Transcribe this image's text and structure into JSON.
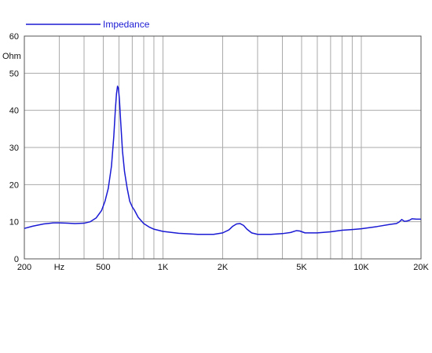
{
  "chart_data": {
    "type": "line",
    "title": "",
    "xlabel": "",
    "ylabel": "Ohm",
    "x_scale": "log",
    "xlim": [
      200,
      20000
    ],
    "ylim": [
      0,
      60
    ],
    "grid": true,
    "legend_position": "top-left",
    "x_tick_labels": [
      {
        "value": 200,
        "label": "200"
      },
      {
        "value": 300,
        "label": "Hz"
      },
      {
        "value": 500,
        "label": "500"
      },
      {
        "value": 1000,
        "label": "1K"
      },
      {
        "value": 2000,
        "label": "2K"
      },
      {
        "value": 5000,
        "label": "5K"
      },
      {
        "value": 10000,
        "label": "10K"
      },
      {
        "value": 20000,
        "label": "20K"
      }
    ],
    "x_gridlines": [
      200,
      300,
      400,
      500,
      600,
      700,
      800,
      900,
      1000,
      2000,
      3000,
      4000,
      5000,
      6000,
      7000,
      8000,
      9000,
      10000,
      20000
    ],
    "y_ticks": [
      0,
      10,
      20,
      30,
      40,
      50,
      60
    ],
    "series": [
      {
        "name": "Impedance",
        "color": "#1a1ad4",
        "points": [
          [
            200,
            8.2
          ],
          [
            220,
            8.8
          ],
          [
            250,
            9.4
          ],
          [
            280,
            9.7
          ],
          [
            300,
            9.7
          ],
          [
            330,
            9.6
          ],
          [
            360,
            9.5
          ],
          [
            400,
            9.6
          ],
          [
            430,
            10.0
          ],
          [
            460,
            11.0
          ],
          [
            490,
            13.0
          ],
          [
            510,
            15.5
          ],
          [
            530,
            19.0
          ],
          [
            550,
            25.0
          ],
          [
            565,
            33.0
          ],
          [
            575,
            40.0
          ],
          [
            583,
            44.5
          ],
          [
            590,
            46.5
          ],
          [
            596,
            46.0
          ],
          [
            603,
            43.0
          ],
          [
            612,
            37.0
          ],
          [
            625,
            29.0
          ],
          [
            640,
            23.5
          ],
          [
            660,
            19.0
          ],
          [
            680,
            15.5
          ],
          [
            700,
            14.0
          ],
          [
            720,
            13.0
          ],
          [
            750,
            11.2
          ],
          [
            800,
            9.5
          ],
          [
            850,
            8.6
          ],
          [
            900,
            8.0
          ],
          [
            1000,
            7.4
          ],
          [
            1200,
            6.9
          ],
          [
            1500,
            6.6
          ],
          [
            1800,
            6.6
          ],
          [
            2000,
            7.0
          ],
          [
            2150,
            7.8
          ],
          [
            2250,
            8.8
          ],
          [
            2350,
            9.4
          ],
          [
            2450,
            9.5
          ],
          [
            2550,
            9.0
          ],
          [
            2650,
            8.0
          ],
          [
            2800,
            7.0
          ],
          [
            3000,
            6.6
          ],
          [
            3500,
            6.6
          ],
          [
            4000,
            6.8
          ],
          [
            4400,
            7.1
          ],
          [
            4700,
            7.6
          ],
          [
            4900,
            7.5
          ],
          [
            5200,
            7.0
          ],
          [
            6000,
            7.0
          ],
          [
            7000,
            7.3
          ],
          [
            8000,
            7.7
          ],
          [
            9000,
            7.9
          ],
          [
            10000,
            8.1
          ],
          [
            12000,
            8.7
          ],
          [
            14000,
            9.3
          ],
          [
            15000,
            9.5
          ],
          [
            15500,
            9.9
          ],
          [
            16000,
            10.6
          ],
          [
            16500,
            10.1
          ],
          [
            17000,
            10.2
          ],
          [
            17500,
            10.4
          ],
          [
            18000,
            10.8
          ],
          [
            19000,
            10.7
          ],
          [
            20000,
            10.7
          ]
        ]
      }
    ]
  }
}
